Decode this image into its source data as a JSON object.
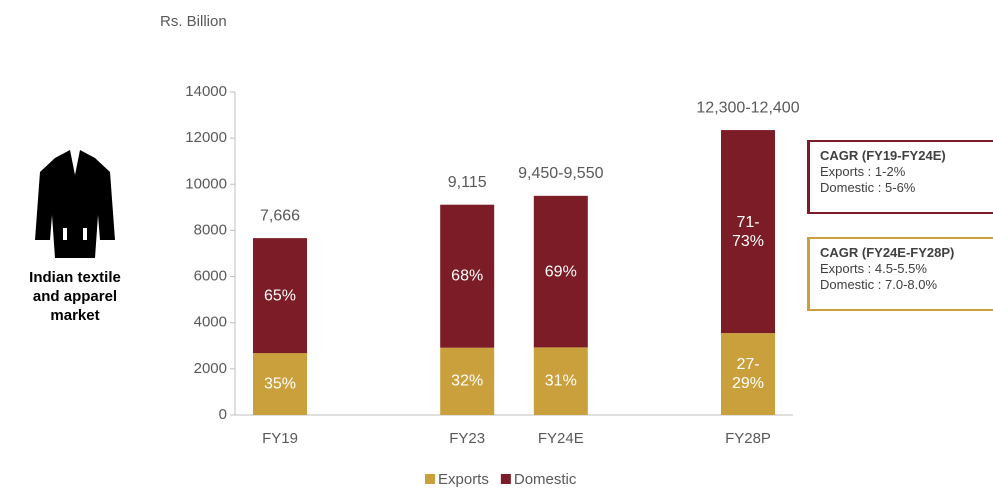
{
  "chart_data": {
    "type": "bar",
    "stacked": true,
    "unit_label": "Rs. Billion",
    "categories": [
      "FY19",
      null,
      "FY23",
      "FY24E",
      null,
      "FY28P"
    ],
    "series": [
      {
        "name": "Exports",
        "color": "#c9a03c",
        "values": [
          2683,
          null,
          2917,
          2930,
          null,
          3550
        ],
        "share_labels": [
          "35%",
          null,
          "32%",
          "31%",
          null,
          "27-\n29%"
        ]
      },
      {
        "name": "Domestic",
        "color": "#7b1c26",
        "values": [
          4983,
          null,
          6198,
          6570,
          null,
          8800
        ],
        "share_labels": [
          "65%",
          null,
          "68%",
          "69%",
          null,
          "71-\n73%"
        ]
      }
    ],
    "total_labels": [
      "7,666",
      null,
      "9,115",
      "9,450-9,550",
      null,
      "12,300-12,400"
    ],
    "ylim": [
      0,
      14000
    ],
    "yticks": [
      0,
      2000,
      4000,
      6000,
      8000,
      10000,
      12000,
      14000
    ],
    "grid": false,
    "legend": "bottom"
  },
  "sidebar": {
    "label": "Indian textile\nand apparel\nmarket"
  },
  "notes": [
    {
      "title": "CAGR (FY19-FY24E)",
      "lines": [
        "Exports : 1-2%",
        "Domestic : 5-6%"
      ],
      "color": "#7b1c26"
    },
    {
      "title": "CAGR (FY24E-FY28P)",
      "lines": [
        "Exports : 4.5-5.5%",
        "Domestic : 7.0-8.0%"
      ],
      "color": "#c9a03c"
    }
  ]
}
